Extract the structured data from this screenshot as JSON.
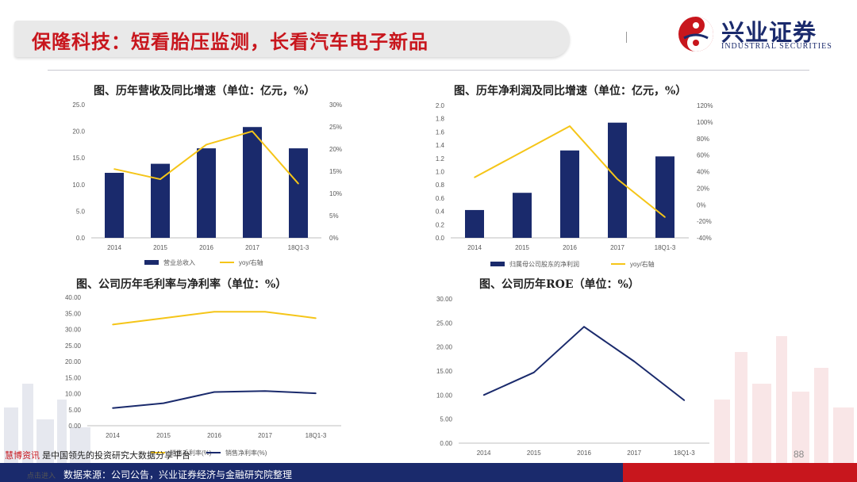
{
  "header": {
    "title": "保隆科技：短看胎压监测，长看汽车电子新品",
    "logo_cn": "兴业证券",
    "logo_en": "INDUSTRIAL SECURITIES"
  },
  "footer": {
    "source": "数据来源：公司公告，兴业证券经济与金融研究院整理",
    "page_number": "88",
    "watermark_brand": "慧博资讯",
    "watermark_text": "是中国领先的投资研究大数据分享平台",
    "watermark_sub": "点击进入"
  },
  "colors": {
    "navy": "#1a2a6c",
    "yellow": "#f5c518",
    "red": "#c8161d"
  },
  "chart_data": [
    {
      "id": "revenue",
      "type": "bar+line",
      "title": "图、历年营收及同比增速（单位：亿元，%）",
      "categories": [
        "2014",
        "2015",
        "2016",
        "2017",
        "18Q1-3"
      ],
      "y_ticks": [
        "0.0",
        "5.0",
        "10.0",
        "15.0",
        "20.0",
        "25.0"
      ],
      "ylim": [
        0,
        25
      ],
      "y2_ticks": [
        "0%",
        "5%",
        "10%",
        "15%",
        "20%",
        "25%",
        "30%"
      ],
      "y2lim": [
        0,
        30
      ],
      "series": [
        {
          "name": "营业总收入",
          "type": "bar",
          "axis": "left",
          "values": [
            12.2,
            13.9,
            16.8,
            20.8,
            16.8
          ]
        },
        {
          "name": "yoy/右轴",
          "type": "line",
          "axis": "right",
          "values": [
            15.5,
            13.2,
            21.0,
            24.0,
            12.2
          ]
        }
      ]
    },
    {
      "id": "net_profit",
      "type": "bar+line",
      "title": "图、历年净利润及同比增速（单位：亿元，%）",
      "categories": [
        "2014",
        "2015",
        "2016",
        "2017",
        "18Q1-3"
      ],
      "y_ticks": [
        "0.0",
        "0.2",
        "0.4",
        "0.6",
        "0.8",
        "1.0",
        "1.2",
        "1.4",
        "1.6",
        "1.8",
        "2.0"
      ],
      "ylim": [
        0,
        2.0
      ],
      "y2_ticks": [
        "-40%",
        "-20%",
        "0%",
        "20%",
        "40%",
        "60%",
        "80%",
        "100%",
        "120%"
      ],
      "y2lim": [
        -40,
        120
      ],
      "series": [
        {
          "name": "归属母公司股东的净利润",
          "type": "bar",
          "axis": "left",
          "values": [
            0.42,
            0.68,
            1.32,
            1.74,
            1.23
          ]
        },
        {
          "name": "yoy/右轴",
          "type": "line",
          "axis": "right",
          "values": [
            33,
            64,
            95,
            31,
            -15
          ]
        }
      ]
    },
    {
      "id": "margins",
      "type": "line",
      "title": "图、公司历年毛利率与净利率（单位：%）",
      "categories": [
        "2014",
        "2015",
        "2016",
        "2017",
        "18Q1-3"
      ],
      "y_ticks": [
        "0.00",
        "5.00",
        "10.00",
        "15.00",
        "20.00",
        "25.00",
        "30.00",
        "35.00",
        "40.00"
      ],
      "ylim": [
        0,
        40
      ],
      "series": [
        {
          "name": "销售毛利率(%)",
          "type": "line",
          "values": [
            31.5,
            33.5,
            35.5,
            35.5,
            33.5
          ]
        },
        {
          "name": "销售净利率(%)",
          "type": "line",
          "values": [
            5.5,
            7.0,
            10.5,
            10.8,
            10.1
          ]
        }
      ]
    },
    {
      "id": "roe",
      "type": "line",
      "title": "图、公司历年ROE（单位：%）",
      "categories": [
        "2014",
        "2015",
        "2016",
        "2017",
        "18Q1-3"
      ],
      "y_ticks": [
        "0.00",
        "5.00",
        "10.00",
        "15.00",
        "20.00",
        "25.00",
        "30.00"
      ],
      "ylim": [
        0,
        30
      ],
      "series": [
        {
          "name": "ROE",
          "type": "line",
          "values": [
            10.0,
            14.7,
            24.2,
            17.0,
            8.9
          ]
        }
      ]
    }
  ]
}
